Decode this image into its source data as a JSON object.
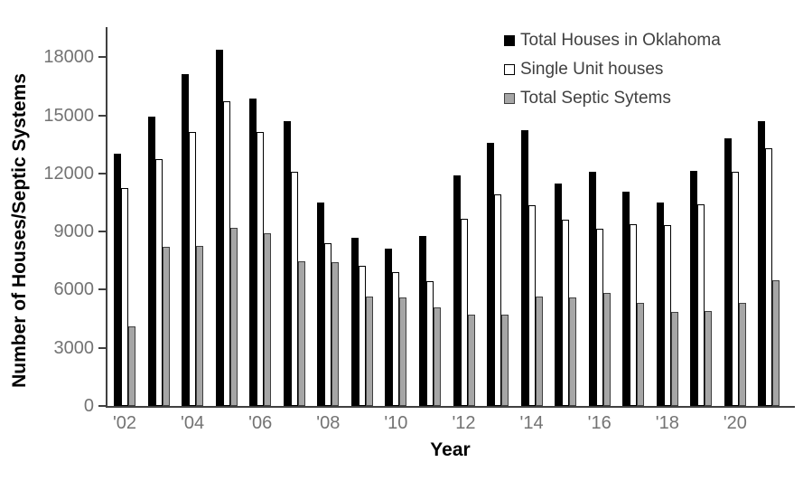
{
  "chart_data": {
    "type": "bar",
    "title": "",
    "xlabel": "Year",
    "ylabel": "Number of Houses/Septic Systems",
    "categories": [
      "2002",
      "2003",
      "2004",
      "2005",
      "2006",
      "2007",
      "2008",
      "2009",
      "2010",
      "2011",
      "2012",
      "2013",
      "2014",
      "2015",
      "2016",
      "2017",
      "2018",
      "2019",
      "2020",
      "2021"
    ],
    "x_tick_labels": [
      "'02",
      "",
      "'04",
      "",
      "'06",
      "",
      "'08",
      "",
      "'10",
      "",
      "'12",
      "",
      "'14",
      "",
      "'16",
      "",
      "'18",
      "",
      "'20",
      ""
    ],
    "yticks": [
      0,
      3000,
      6000,
      9000,
      12000,
      15000,
      18000
    ],
    "ylim": [
      0,
      19600
    ],
    "grid": false,
    "legend_position": "top-right",
    "series": [
      {
        "name": "Total Houses in Oklahoma",
        "marker": "filled-black-square",
        "fill": "#000000",
        "border": "#000000",
        "values": [
          13000,
          14950,
          17100,
          18400,
          15850,
          14700,
          10500,
          8700,
          8100,
          8750,
          11900,
          13600,
          14250,
          11500,
          12100,
          11050,
          10500,
          12150,
          13800,
          14700
        ]
      },
      {
        "name": "Single Unit houses",
        "marker": "open-white-square",
        "fill": "#ffffff",
        "border": "#000000",
        "values": [
          11250,
          12750,
          14150,
          15700,
          14150,
          12100,
          8400,
          7250,
          6900,
          6450,
          9650,
          10900,
          10350,
          9600,
          9150,
          9400,
          9350,
          10400,
          12100,
          13300
        ]
      },
      {
        "name": "Total Septic Sytems",
        "marker": "filled-gray-square",
        "fill": "#a6a6a6",
        "border": "#404040",
        "values": [
          4100,
          8200,
          8250,
          9200,
          8900,
          7450,
          7400,
          5650,
          5600,
          5100,
          4700,
          4700,
          5650,
          5600,
          5850,
          5300,
          4850,
          4900,
          5300,
          6500
        ]
      }
    ]
  },
  "axes": {
    "x_title": "Year",
    "y_title": "Number of Houses/Septic Systems",
    "y_tick_label_color": "#737373",
    "axis_line_color": "#404040"
  }
}
